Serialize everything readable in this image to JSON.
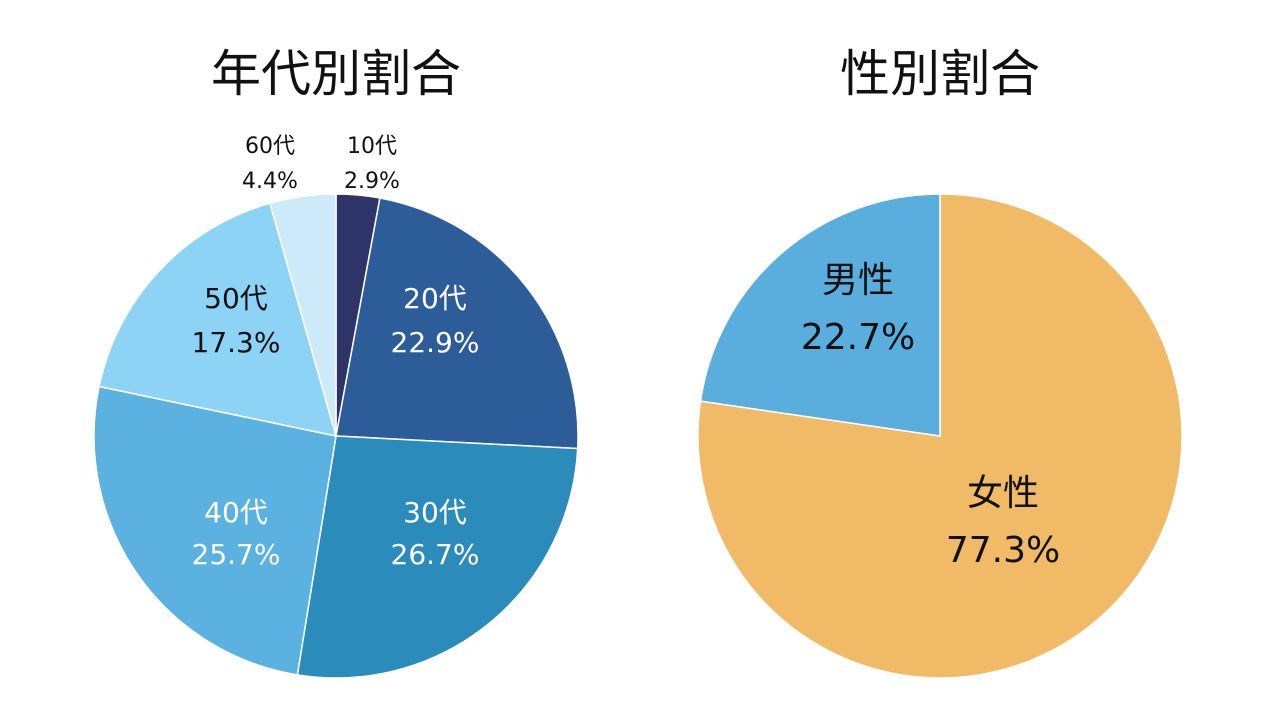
{
  "chart_data": [
    {
      "type": "pie",
      "title": "年代別割合",
      "start": "12 o'clock",
      "direction": "clockwise",
      "slices": [
        {
          "label": "10代",
          "value": 2.9,
          "value_text": "2.9%",
          "color": "#2e3468",
          "text_color": "#111111",
          "label_position": "outside"
        },
        {
          "label": "20代",
          "value": 22.9,
          "value_text": "22.9%",
          "color": "#2d5d98",
          "text_color": "#ffffff",
          "label_position": "inside"
        },
        {
          "label": "30代",
          "value": 26.7,
          "value_text": "26.7%",
          "color": "#2b8bba",
          "text_color": "#ffffff",
          "label_position": "inside"
        },
        {
          "label": "40代",
          "value": 25.7,
          "value_text": "25.7%",
          "color": "#5bb1e0",
          "text_color": "#ffffff",
          "label_position": "inside"
        },
        {
          "label": "50代",
          "value": 17.3,
          "value_text": "17.3%",
          "color": "#8dd3f6",
          "text_color": "#111111",
          "label_position": "inside"
        },
        {
          "label": "60代",
          "value": 4.4,
          "value_text": "4.4%",
          "color": "#cdeafb",
          "text_color": "#111111",
          "label_position": "outside"
        }
      ]
    },
    {
      "type": "pie",
      "title": "性別割合",
      "start": "12 o'clock",
      "direction": "clockwise",
      "slices": [
        {
          "label": "女性",
          "value": 77.3,
          "value_text": "77.3%",
          "color": "#f0ba66",
          "text_color": "#111111",
          "label_position": "inside"
        },
        {
          "label": "男性",
          "value": 22.7,
          "value_text": "22.7%",
          "color": "#5aaede",
          "text_color": "#111111",
          "label_position": "inside"
        }
      ]
    }
  ]
}
